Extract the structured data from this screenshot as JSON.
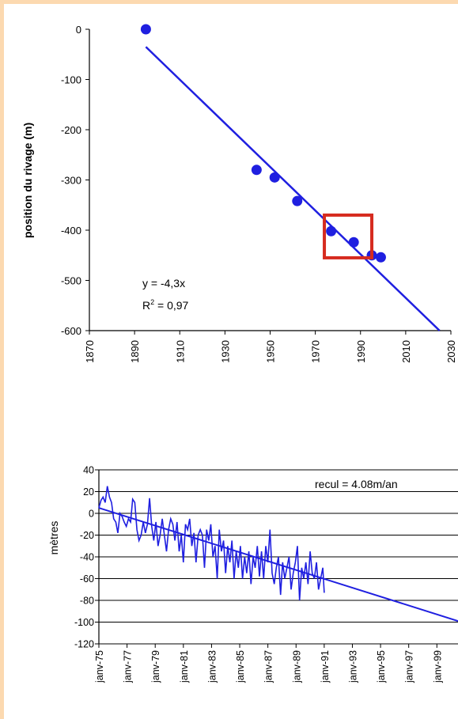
{
  "chart_data": [
    {
      "type": "scatter",
      "ylabel": "position du rivage  (m)",
      "xlim": [
        1870,
        2030
      ],
      "ylim": [
        -600,
        0
      ],
      "x_ticks": [
        "1870",
        "1890",
        "1910",
        "1930",
        "1950",
        "1970",
        "1990",
        "2010",
        "2030"
      ],
      "y_ticks": [
        "0",
        "-100",
        "-200",
        "-300",
        "-400",
        "-500",
        "-600"
      ],
      "points": [
        {
          "x": 1895,
          "y": 0
        },
        {
          "x": 1944,
          "y": -280
        },
        {
          "x": 1952,
          "y": -295
        },
        {
          "x": 1962,
          "y": -342
        },
        {
          "x": 1977,
          "y": -402
        },
        {
          "x": 1987,
          "y": -424
        },
        {
          "x": 1995,
          "y": -450
        },
        {
          "x": 1999,
          "y": -454
        }
      ],
      "trendline": {
        "x": [
          1895,
          2025
        ],
        "y": [
          -35,
          -600
        ]
      },
      "equation": "y = -4,3x",
      "r2_label": "R",
      "r2_exp": "2",
      "r2_value": " = 0,97",
      "highlight_box": {
        "x": [
          1974,
          1995
        ],
        "y": [
          -370,
          -455
        ]
      },
      "colors": {
        "series": "#1f1fe0",
        "highlight": "#d62b1f"
      }
    },
    {
      "type": "line",
      "ylabel": "mètres",
      "annotation": "recul = 4.08m/an",
      "ylim": [
        -120,
        40
      ],
      "x_ticks": [
        "janv-75",
        "janv-77",
        "janv-79",
        "janv-81",
        "janv-83",
        "janv-85",
        "janv-87",
        "janv-89",
        "janv-91",
        "janv-93",
        "janv-95",
        "janv-97",
        "janv-99"
      ],
      "y_ticks": [
        "40",
        "20",
        "0",
        "-20",
        "-40",
        "-60",
        "-80",
        "-100",
        "-120"
      ],
      "x_range_years": [
        1975,
        2000.5
      ],
      "series_x": [
        1975.0,
        1975.15,
        1975.3,
        1975.45,
        1975.6,
        1975.75,
        1975.9,
        1976.05,
        1976.2,
        1976.35,
        1976.5,
        1976.65,
        1976.8,
        1976.95,
        1977.1,
        1977.25,
        1977.4,
        1977.55,
        1977.7,
        1977.85,
        1978.0,
        1978.15,
        1978.3,
        1978.45,
        1978.6,
        1978.75,
        1978.9,
        1979.05,
        1979.2,
        1979.35,
        1979.5,
        1979.65,
        1979.8,
        1979.95,
        1980.1,
        1980.25,
        1980.4,
        1980.55,
        1980.7,
        1980.85,
        1981.0,
        1981.15,
        1981.3,
        1981.45,
        1981.6,
        1981.75,
        1981.9,
        1982.05,
        1982.2,
        1982.35,
        1982.5,
        1982.65,
        1982.8,
        1982.95,
        1983.1,
        1983.25,
        1983.4,
        1983.55,
        1983.7,
        1983.85,
        1984.0,
        1984.15,
        1984.3,
        1984.45,
        1984.6,
        1984.75,
        1984.9,
        1985.05,
        1985.2,
        1985.35,
        1985.5,
        1985.65,
        1985.8,
        1985.95,
        1986.1,
        1986.25,
        1986.4,
        1986.55,
        1986.7,
        1986.85,
        1987.0,
        1987.15,
        1987.3,
        1987.45,
        1987.6,
        1987.75,
        1987.9,
        1988.05,
        1988.2,
        1988.35,
        1988.5,
        1988.65,
        1988.8,
        1988.95,
        1989.1,
        1989.25,
        1989.4,
        1989.55,
        1989.7,
        1989.85,
        1990.0,
        1990.15,
        1990.3,
        1990.45,
        1990.6,
        1990.75,
        1990.9,
        1991.0
      ],
      "series_y": [
        5,
        12,
        15,
        10,
        25,
        15,
        10,
        -5,
        -8,
        -18,
        0,
        -3,
        -8,
        -12,
        -5,
        -8,
        13,
        10,
        -15,
        -25,
        -20,
        -8,
        -18,
        -10,
        14,
        -12,
        -25,
        -8,
        -30,
        -20,
        -5,
        -20,
        -35,
        -15,
        -5,
        -10,
        -25,
        -8,
        -35,
        -20,
        -45,
        -10,
        -15,
        -5,
        -30,
        -18,
        -45,
        -20,
        -15,
        -20,
        -50,
        -15,
        -25,
        -10,
        -40,
        -30,
        -60,
        -15,
        -35,
        -25,
        -55,
        -30,
        -45,
        -25,
        -60,
        -35,
        -50,
        -30,
        -60,
        -40,
        -55,
        -35,
        -65,
        -40,
        -50,
        -30,
        -58,
        -35,
        -60,
        -30,
        -45,
        -15,
        -55,
        -65,
        -50,
        -40,
        -75,
        -45,
        -60,
        -50,
        -40,
        -70,
        -55,
        -45,
        -30,
        -80,
        -50,
        -60,
        -45,
        -65,
        -35,
        -55,
        -60,
        -45,
        -70,
        -60,
        -50,
        -73
      ],
      "trendline": {
        "x": [
          1975,
          2000.5
        ],
        "y": [
          5,
          -99
        ]
      },
      "colors": {
        "series": "#1f1fe0"
      }
    }
  ]
}
